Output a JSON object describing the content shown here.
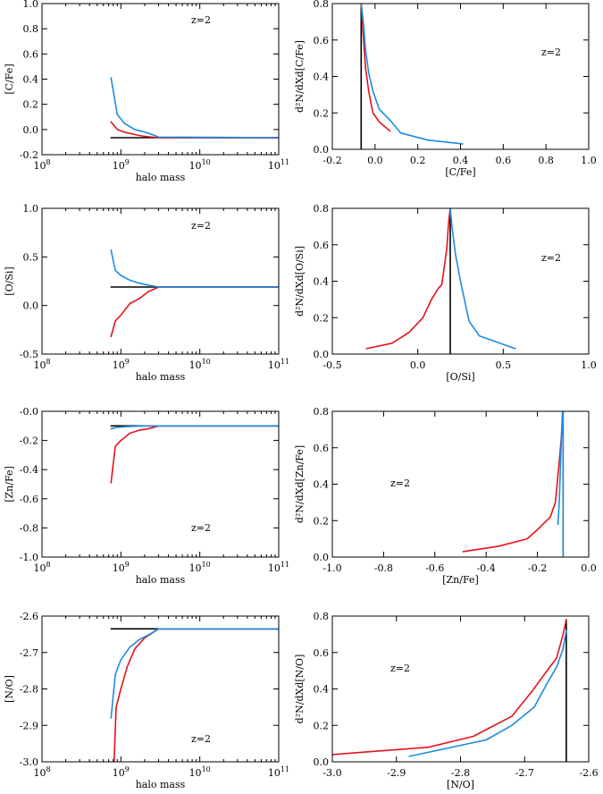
{
  "colors": {
    "black": "#000000",
    "red": "#e3141c",
    "blue": "#1e8be0"
  },
  "chart_data": [
    {
      "type": "line",
      "xscale": "log",
      "xlim": [
        100000000,
        100000000000
      ],
      "ylim": [
        -0.2,
        1.0
      ],
      "xlabel": "halo mass",
      "ylabel": "[C/Fe]",
      "annotation": "z=2",
      "xticks": [
        {
          "v": 100000000,
          "b": "10",
          "e": "8"
        },
        {
          "v": 1000000000,
          "b": "10",
          "e": "9"
        },
        {
          "v": 10000000000,
          "b": "10",
          "e": "10"
        },
        {
          "v": 100000000000,
          "b": "10",
          "e": "11"
        }
      ],
      "yticks": [
        {
          "v": -0.2,
          "label": "-0.2"
        },
        {
          "v": 0.0,
          "label": "0.0"
        },
        {
          "v": 0.2,
          "label": "0.2"
        },
        {
          "v": 0.4,
          "label": "0.4"
        },
        {
          "v": 0.6,
          "label": "0.6"
        },
        {
          "v": 0.8,
          "label": "0.8"
        },
        {
          "v": 1.0,
          "label": "1.0"
        }
      ],
      "series": [
        {
          "color": "black",
          "x": [
            750000000,
            1000000000,
            2000000000,
            3000000000,
            100000000000
          ],
          "y": [
            -0.065,
            -0.065,
            -0.065,
            -0.065,
            -0.065
          ]
        },
        {
          "color": "red",
          "x": [
            750000000,
            900000000,
            1100000000,
            1500000000,
            2000000000,
            3000000000,
            100000000000
          ],
          "y": [
            0.06,
            0.0,
            -0.02,
            -0.04,
            -0.055,
            -0.065,
            -0.065
          ]
        },
        {
          "color": "blue",
          "x": [
            750000000,
            900000000,
            1100000000,
            1500000000,
            2000000000,
            2500000000,
            3000000000,
            100000000000
          ],
          "y": [
            0.41,
            0.12,
            0.05,
            0.0,
            -0.02,
            -0.04,
            -0.06,
            -0.065
          ]
        }
      ]
    },
    {
      "type": "line",
      "xscale": "linear",
      "xlim": [
        -0.2,
        1.0
      ],
      "ylim": [
        0.0,
        0.8
      ],
      "xlabel": "[C/Fe]",
      "ylabel": "d²N/dXd[C/Fe]",
      "annotation": "z=2",
      "xticks": [
        {
          "v": -0.2,
          "label": "-0.2"
        },
        {
          "v": 0.0,
          "label": "0.0"
        },
        {
          "v": 0.2,
          "label": "0.2"
        },
        {
          "v": 0.4,
          "label": "0.4"
        },
        {
          "v": 0.6,
          "label": "0.6"
        },
        {
          "v": 0.8,
          "label": "0.8"
        },
        {
          "v": 1.0,
          "label": "1.0"
        }
      ],
      "yticks": [
        {
          "v": 0.0,
          "label": "0.0"
        },
        {
          "v": 0.2,
          "label": "0.2"
        },
        {
          "v": 0.4,
          "label": "0.4"
        },
        {
          "v": 0.6,
          "label": "0.6"
        },
        {
          "v": 0.8,
          "label": "0.8"
        }
      ],
      "series": [
        {
          "color": "black",
          "x": [
            -0.065,
            -0.065
          ],
          "y": [
            0.0,
            0.8
          ]
        },
        {
          "color": "red",
          "x": [
            -0.065,
            -0.055,
            -0.045,
            -0.03,
            -0.01,
            0.02,
            0.07
          ],
          "y": [
            0.8,
            0.62,
            0.45,
            0.32,
            0.2,
            0.15,
            0.1
          ]
        },
        {
          "color": "blue",
          "x": [
            -0.065,
            -0.055,
            -0.045,
            -0.03,
            -0.01,
            0.02,
            0.07,
            0.12,
            0.25,
            0.41
          ],
          "y": [
            0.8,
            0.7,
            0.55,
            0.42,
            0.32,
            0.22,
            0.16,
            0.09,
            0.05,
            0.03
          ]
        }
      ]
    },
    {
      "type": "line",
      "xscale": "log",
      "xlim": [
        100000000,
        100000000000
      ],
      "ylim": [
        -0.5,
        1.0
      ],
      "xlabel": "halo mass",
      "ylabel": "[O/Si]",
      "annotation": "z=2",
      "xticks": [
        {
          "v": 100000000,
          "b": "10",
          "e": "8"
        },
        {
          "v": 1000000000,
          "b": "10",
          "e": "9"
        },
        {
          "v": 10000000000,
          "b": "10",
          "e": "10"
        },
        {
          "v": 100000000000,
          "b": "10",
          "e": "11"
        }
      ],
      "yticks": [
        {
          "v": -0.5,
          "label": "-0.5"
        },
        {
          "v": 0.0,
          "label": "0.0"
        },
        {
          "v": 0.5,
          "label": "0.5"
        },
        {
          "v": 1.0,
          "label": "1.0"
        }
      ],
      "series": [
        {
          "color": "black",
          "x": [
            750000000,
            1000000000,
            2000000000,
            3000000000,
            100000000000
          ],
          "y": [
            0.19,
            0.19,
            0.19,
            0.19,
            0.19
          ]
        },
        {
          "color": "red",
          "x": [
            750000000,
            850000000,
            1000000000,
            1300000000,
            1700000000,
            2200000000,
            3000000000,
            100000000000
          ],
          "y": [
            -0.32,
            -0.16,
            -0.1,
            0.02,
            0.07,
            0.14,
            0.19,
            0.19
          ]
        },
        {
          "color": "blue",
          "x": [
            750000000,
            850000000,
            1000000000,
            1300000000,
            1700000000,
            2200000000,
            3000000000,
            100000000000
          ],
          "y": [
            0.57,
            0.36,
            0.31,
            0.26,
            0.23,
            0.21,
            0.19,
            0.19
          ]
        }
      ]
    },
    {
      "type": "line",
      "xscale": "linear",
      "xlim": [
        -0.5,
        1.0
      ],
      "ylim": [
        0.0,
        0.8
      ],
      "xlabel": "[O/Si]",
      "ylabel": "d²N/dXd[O/Si]",
      "annotation": "z=2",
      "xticks": [
        {
          "v": -0.5,
          "label": "-0.5"
        },
        {
          "v": 0.0,
          "label": "0.0"
        },
        {
          "v": 0.5,
          "label": "0.5"
        },
        {
          "v": 1.0,
          "label": "1.0"
        }
      ],
      "yticks": [
        {
          "v": 0.0,
          "label": "0.0"
        },
        {
          "v": 0.2,
          "label": "0.2"
        },
        {
          "v": 0.4,
          "label": "0.4"
        },
        {
          "v": 0.6,
          "label": "0.6"
        },
        {
          "v": 0.8,
          "label": "0.8"
        }
      ],
      "series": [
        {
          "color": "black",
          "x": [
            0.19,
            0.19
          ],
          "y": [
            0.0,
            0.8
          ]
        },
        {
          "color": "red",
          "x": [
            -0.3,
            -0.15,
            -0.05,
            0.03,
            0.08,
            0.12,
            0.14,
            0.17,
            0.18,
            0.19
          ],
          "y": [
            0.03,
            0.06,
            0.12,
            0.2,
            0.3,
            0.36,
            0.38,
            0.58,
            0.72,
            0.8
          ]
        },
        {
          "color": "blue",
          "x": [
            0.19,
            0.2,
            0.22,
            0.25,
            0.3,
            0.36,
            0.57
          ],
          "y": [
            0.8,
            0.7,
            0.55,
            0.4,
            0.18,
            0.1,
            0.03
          ]
        }
      ]
    },
    {
      "type": "line",
      "xscale": "log",
      "xlim": [
        100000000,
        100000000000
      ],
      "ylim": [
        -1.0,
        0.0
      ],
      "xlabel": "halo mass",
      "ylabel": "[Zn/Fe]",
      "annotation": "z=2",
      "xticks": [
        {
          "v": 100000000,
          "b": "10",
          "e": "8"
        },
        {
          "v": 1000000000,
          "b": "10",
          "e": "9"
        },
        {
          "v": 10000000000,
          "b": "10",
          "e": "10"
        },
        {
          "v": 100000000000,
          "b": "10",
          "e": "11"
        }
      ],
      "yticks": [
        {
          "v": -1.0,
          "label": "-1.0"
        },
        {
          "v": -0.8,
          "label": "-0.8"
        },
        {
          "v": -0.6,
          "label": "-0.6"
        },
        {
          "v": -0.4,
          "label": "-0.4"
        },
        {
          "v": -0.2,
          "label": "-0.2"
        },
        {
          "v": 0.0,
          "label": "-0.0"
        }
      ],
      "series": [
        {
          "color": "black",
          "x": [
            750000000,
            1000000000,
            2000000000,
            3000000000,
            100000000000
          ],
          "y": [
            -0.1,
            -0.1,
            -0.1,
            -0.1,
            -0.1
          ]
        },
        {
          "color": "red",
          "x": [
            750000000,
            850000000,
            1000000000,
            1300000000,
            1700000000,
            2200000000,
            3000000000,
            100000000000
          ],
          "y": [
            -0.49,
            -0.24,
            -0.2,
            -0.15,
            -0.13,
            -0.12,
            -0.1,
            -0.1
          ]
        },
        {
          "color": "blue",
          "x": [
            750000000,
            900000000,
            1200000000,
            2000000000,
            3000000000,
            100000000000
          ],
          "y": [
            -0.12,
            -0.11,
            -0.105,
            -0.1,
            -0.1,
            -0.1
          ]
        }
      ]
    },
    {
      "type": "line",
      "xscale": "linear",
      "xlim": [
        -1.0,
        0.0
      ],
      "ylim": [
        0.0,
        0.8
      ],
      "xlabel": "[Zn/Fe]",
      "ylabel": "d²N/dXd[Zn/Fe]",
      "annotation": "z=2",
      "xticks": [
        {
          "v": -1.0,
          "label": "-1.0"
        },
        {
          "v": -0.8,
          "label": "-0.8"
        },
        {
          "v": -0.6,
          "label": "-0.6"
        },
        {
          "v": -0.4,
          "label": "-0.4"
        },
        {
          "v": -0.2,
          "label": "-0.2"
        },
        {
          "v": 0.0,
          "label": "0.0"
        }
      ],
      "yticks": [
        {
          "v": 0.0,
          "label": "0.0"
        },
        {
          "v": 0.2,
          "label": "0.2"
        },
        {
          "v": 0.4,
          "label": "0.4"
        },
        {
          "v": 0.6,
          "label": "0.6"
        },
        {
          "v": 0.8,
          "label": "0.8"
        }
      ],
      "series": [
        {
          "color": "black",
          "x": [
            -0.1,
            -0.1
          ],
          "y": [
            0.0,
            0.86
          ]
        },
        {
          "color": "red",
          "x": [
            -0.49,
            -0.35,
            -0.24,
            -0.2,
            -0.15,
            -0.13,
            -0.12,
            -0.11,
            -0.1
          ],
          "y": [
            0.03,
            0.06,
            0.1,
            0.15,
            0.22,
            0.3,
            0.45,
            0.6,
            0.78
          ]
        },
        {
          "color": "blue",
          "x": [
            -0.12,
            -0.115,
            -0.11,
            -0.105,
            -0.1,
            -0.1
          ],
          "y": [
            0.18,
            0.3,
            0.5,
            0.72,
            0.86,
            0.0
          ]
        }
      ]
    },
    {
      "type": "line",
      "xscale": "log",
      "xlim": [
        100000000,
        100000000000
      ],
      "ylim": [
        -3.0,
        -2.6
      ],
      "xlabel": "halo mass",
      "ylabel": "[N/O]",
      "annotation": "z=2",
      "xticks": [
        {
          "v": 100000000,
          "b": "10",
          "e": "8"
        },
        {
          "v": 1000000000,
          "b": "10",
          "e": "9"
        },
        {
          "v": 10000000000,
          "b": "10",
          "e": "10"
        },
        {
          "v": 100000000000,
          "b": "10",
          "e": "11"
        }
      ],
      "yticks": [
        {
          "v": -3.0,
          "label": "-3.0"
        },
        {
          "v": -2.9,
          "label": "-2.9"
        },
        {
          "v": -2.8,
          "label": "-2.8"
        },
        {
          "v": -2.7,
          "label": "-2.7"
        },
        {
          "v": -2.6,
          "label": "-2.6"
        }
      ],
      "series": [
        {
          "color": "black",
          "x": [
            750000000,
            1000000000,
            2000000000,
            3000000000,
            100000000000
          ],
          "y": [
            -2.635,
            -2.635,
            -2.635,
            -2.635,
            -2.635
          ]
        },
        {
          "color": "red",
          "x": [
            820000000,
            870000000,
            1000000000,
            1200000000,
            1500000000,
            2000000000,
            3000000000,
            100000000000
          ],
          "y": [
            -3.0,
            -2.85,
            -2.8,
            -2.74,
            -2.69,
            -2.66,
            -2.635,
            -2.635
          ]
        },
        {
          "color": "blue",
          "x": [
            750000000,
            850000000,
            1000000000,
            1300000000,
            1700000000,
            2300000000,
            3000000000,
            100000000000
          ],
          "y": [
            -2.88,
            -2.76,
            -2.72,
            -2.685,
            -2.665,
            -2.65,
            -2.635,
            -2.635
          ]
        }
      ]
    },
    {
      "type": "line",
      "xscale": "linear",
      "xlim": [
        -3.0,
        -2.6
      ],
      "ylim": [
        0.0,
        0.8
      ],
      "xlabel": "[N/O]",
      "ylabel": "d²N/dXd[N/O]",
      "annotation": "z=2",
      "xticks": [
        {
          "v": -3.0,
          "label": "-3.0"
        },
        {
          "v": -2.9,
          "label": "-2.9"
        },
        {
          "v": -2.8,
          "label": "-2.8"
        },
        {
          "v": -2.7,
          "label": "-2.7"
        },
        {
          "v": -2.6,
          "label": "-2.6"
        }
      ],
      "yticks": [
        {
          "v": 0.0,
          "label": "0.0"
        },
        {
          "v": 0.2,
          "label": "0.2"
        },
        {
          "v": 0.4,
          "label": "0.4"
        },
        {
          "v": 0.6,
          "label": "0.6"
        },
        {
          "v": 0.8,
          "label": "0.8"
        }
      ],
      "series": [
        {
          "color": "black",
          "x": [
            -2.635,
            -2.635
          ],
          "y": [
            0.0,
            0.78
          ]
        },
        {
          "color": "red",
          "x": [
            -3.0,
            -2.85,
            -2.78,
            -2.72,
            -2.69,
            -2.665,
            -2.65,
            -2.64,
            -2.635
          ],
          "y": [
            0.04,
            0.08,
            0.14,
            0.25,
            0.38,
            0.5,
            0.57,
            0.7,
            0.78
          ]
        },
        {
          "color": "blue",
          "x": [
            -2.88,
            -2.76,
            -2.72,
            -2.685,
            -2.665,
            -2.65,
            -2.64,
            -2.635
          ],
          "y": [
            0.03,
            0.12,
            0.2,
            0.3,
            0.43,
            0.52,
            0.62,
            0.72
          ]
        }
      ]
    }
  ]
}
